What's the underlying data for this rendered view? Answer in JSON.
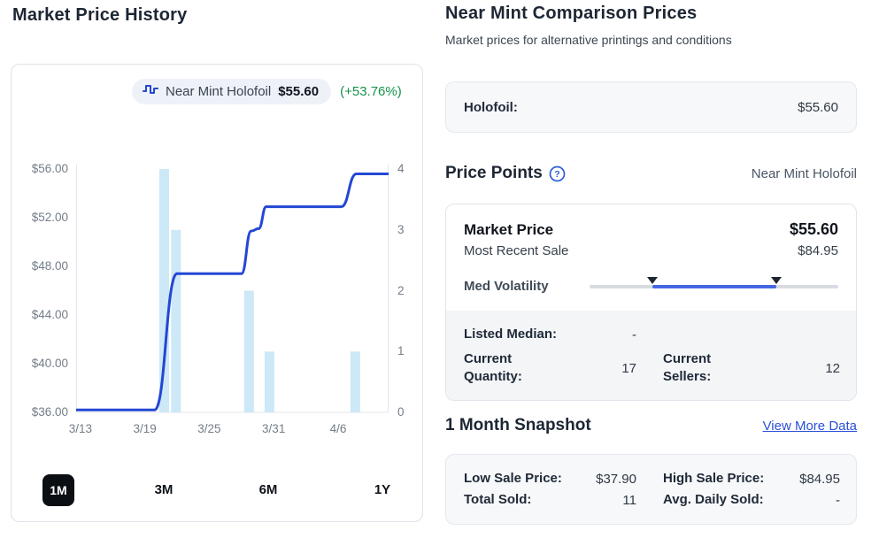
{
  "left_panel": {
    "title": "Market Price History",
    "legend": {
      "series_label": "Near Mint Holofoil",
      "price": "$55.60",
      "change": "(+53.76%)",
      "change_color": "#149348"
    },
    "range_buttons": [
      {
        "label": "1M",
        "selected": true
      },
      {
        "label": "3M",
        "selected": false
      },
      {
        "label": "6M",
        "selected": false
      },
      {
        "label": "1Y",
        "selected": false
      }
    ]
  },
  "chart_data": {
    "type": "line+bar",
    "title": "Market Price History",
    "series_name": "Near Mint Holofoil",
    "line_color": "#2347d4",
    "bar_color": "#cde8f7",
    "axis_color": "#e3e6ea",
    "x_domain": [
      -0.4,
      28.7
    ],
    "x_unit": "days after 3/13",
    "x_ticks": [
      {
        "label": "3/13",
        "x": 0
      },
      {
        "label": "3/19",
        "x": 6
      },
      {
        "label": "3/25",
        "x": 12
      },
      {
        "label": "3/31",
        "x": 18
      },
      {
        "label": "4/6",
        "x": 24
      }
    ],
    "y_left": {
      "label": "price_usd",
      "min": 36,
      "max": 56,
      "ticks": [
        56,
        52,
        48,
        44,
        40,
        36
      ],
      "tick_labels": [
        "$56.00",
        "$52.00",
        "$48.00",
        "$44.00",
        "$40.00",
        "$36.00"
      ]
    },
    "y_right": {
      "label": "sales_count",
      "min": 0,
      "max": 4,
      "ticks": [
        4,
        3,
        2,
        1,
        0
      ],
      "tick_labels": [
        "4",
        "3",
        "2",
        "1",
        "0"
      ]
    },
    "line_points": [
      {
        "x": -0.4,
        "price": 36.2
      },
      {
        "x": 6.9,
        "price": 36.2
      },
      {
        "x": 9.0,
        "price": 47.4
      },
      {
        "x": 15.0,
        "price": 47.4
      },
      {
        "x": 15.9,
        "price": 50.9
      },
      {
        "x": 16.6,
        "price": 51.1
      },
      {
        "x": 17.3,
        "price": 52.9
      },
      {
        "x": 24.3,
        "price": 52.9
      },
      {
        "x": 25.7,
        "price": 55.6
      },
      {
        "x": 28.7,
        "price": 55.6
      }
    ],
    "sales_bars": [
      {
        "date": "3/21",
        "x": 7.8,
        "count": 4
      },
      {
        "date": "3/22",
        "x": 8.9,
        "count": 3
      },
      {
        "date": "3/29",
        "x": 15.7,
        "count": 2
      },
      {
        "date": "3/31",
        "x": 17.6,
        "count": 1
      },
      {
        "date": "4/8",
        "x": 25.6,
        "count": 1
      }
    ]
  },
  "right_panel": {
    "title": "Near Mint Comparison Prices",
    "subtitle": "Market prices for alternative printings and conditions",
    "comparison_rows": [
      {
        "label": "Holofoil:",
        "value": "$55.60"
      }
    ],
    "price_points": {
      "heading": "Price Points",
      "help_icon": "question-circle",
      "condition_label": "Near Mint Holofoil",
      "market_price_label": "Market Price",
      "market_price": "$55.60",
      "most_recent_sale_label": "Most Recent Sale",
      "most_recent_sale": "$84.95",
      "volatility_label": "Med Volatility",
      "volatility_range_pct": [
        25.4,
        75.2
      ],
      "slider_color": "#4466e3",
      "stats": [
        {
          "label": "Listed Median:",
          "value": "-"
        },
        {
          "label": "Current Quantity:",
          "value": "17"
        },
        {
          "label": "Current Sellers:",
          "value": "12"
        }
      ]
    },
    "snapshot": {
      "heading": "1 Month Snapshot",
      "link_label": "View More Data",
      "stats": [
        {
          "label": "Low Sale Price:",
          "value": "$37.90"
        },
        {
          "label": "High Sale Price:",
          "value": "$84.95"
        },
        {
          "label": "Total Sold:",
          "value": "11"
        },
        {
          "label": "Avg. Daily Sold:",
          "value": "-"
        }
      ]
    }
  }
}
